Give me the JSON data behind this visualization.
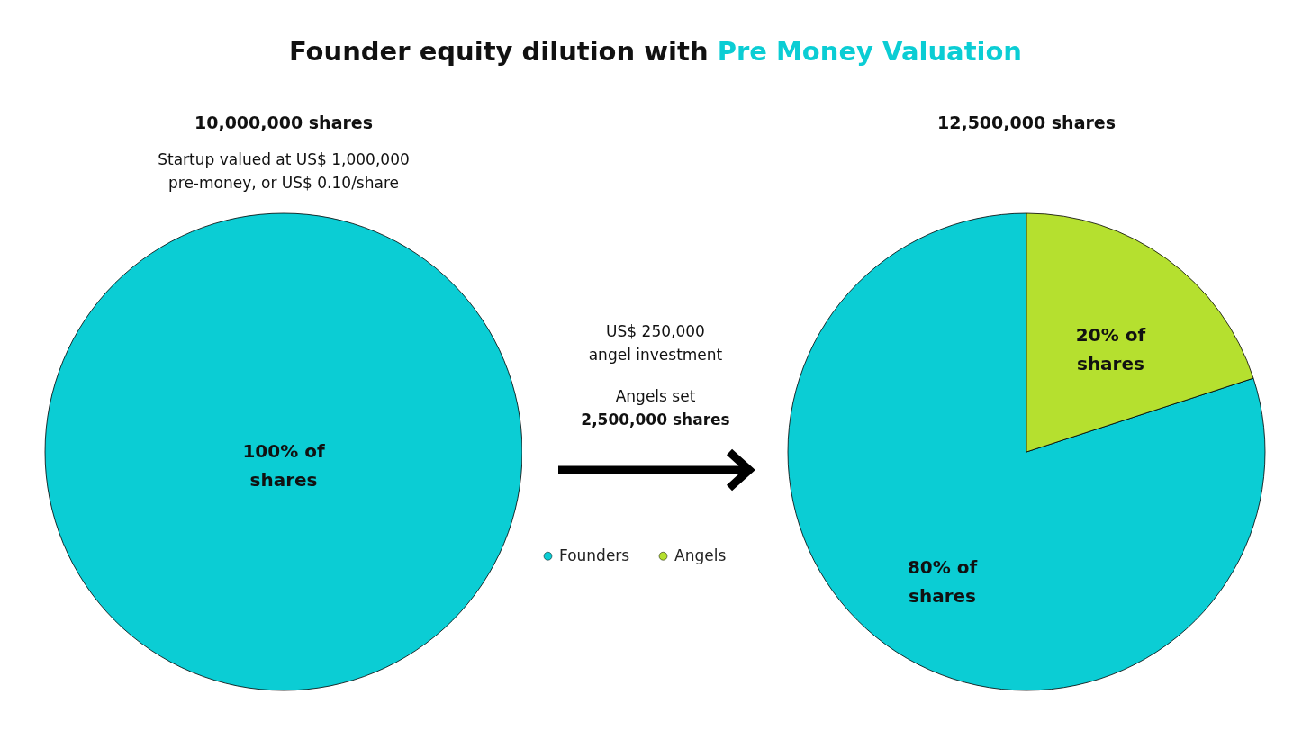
{
  "chart_data": [
    {
      "type": "pie",
      "title": "Founder equity dilution with Pre Money Valuation",
      "subtitle": "10,000,000 shares",
      "annotations": [
        "Startup valued at US$ 1,000,000 pre-money, or US$ 0.10/share"
      ],
      "categories": [
        null
      ],
      "values": [
        100
      ],
      "colors": [
        "#0bcdd4"
      ],
      "value_labels": [
        "100% of shares"
      ],
      "legend": false
    },
    {
      "type": "pie",
      "subtitle": "12,500,000 shares",
      "annotations": [
        "US$ 250,000 angel investment",
        "Angels set",
        "2,500,000 shares"
      ],
      "categories": [
        "Founders",
        "Angels"
      ],
      "values": [
        80,
        20
      ],
      "colors": [
        "#0bcdd4",
        "#b5e02f"
      ],
      "value_labels": [
        "80% of shares",
        "20% of shares"
      ],
      "legend": "left"
    }
  ]
}
